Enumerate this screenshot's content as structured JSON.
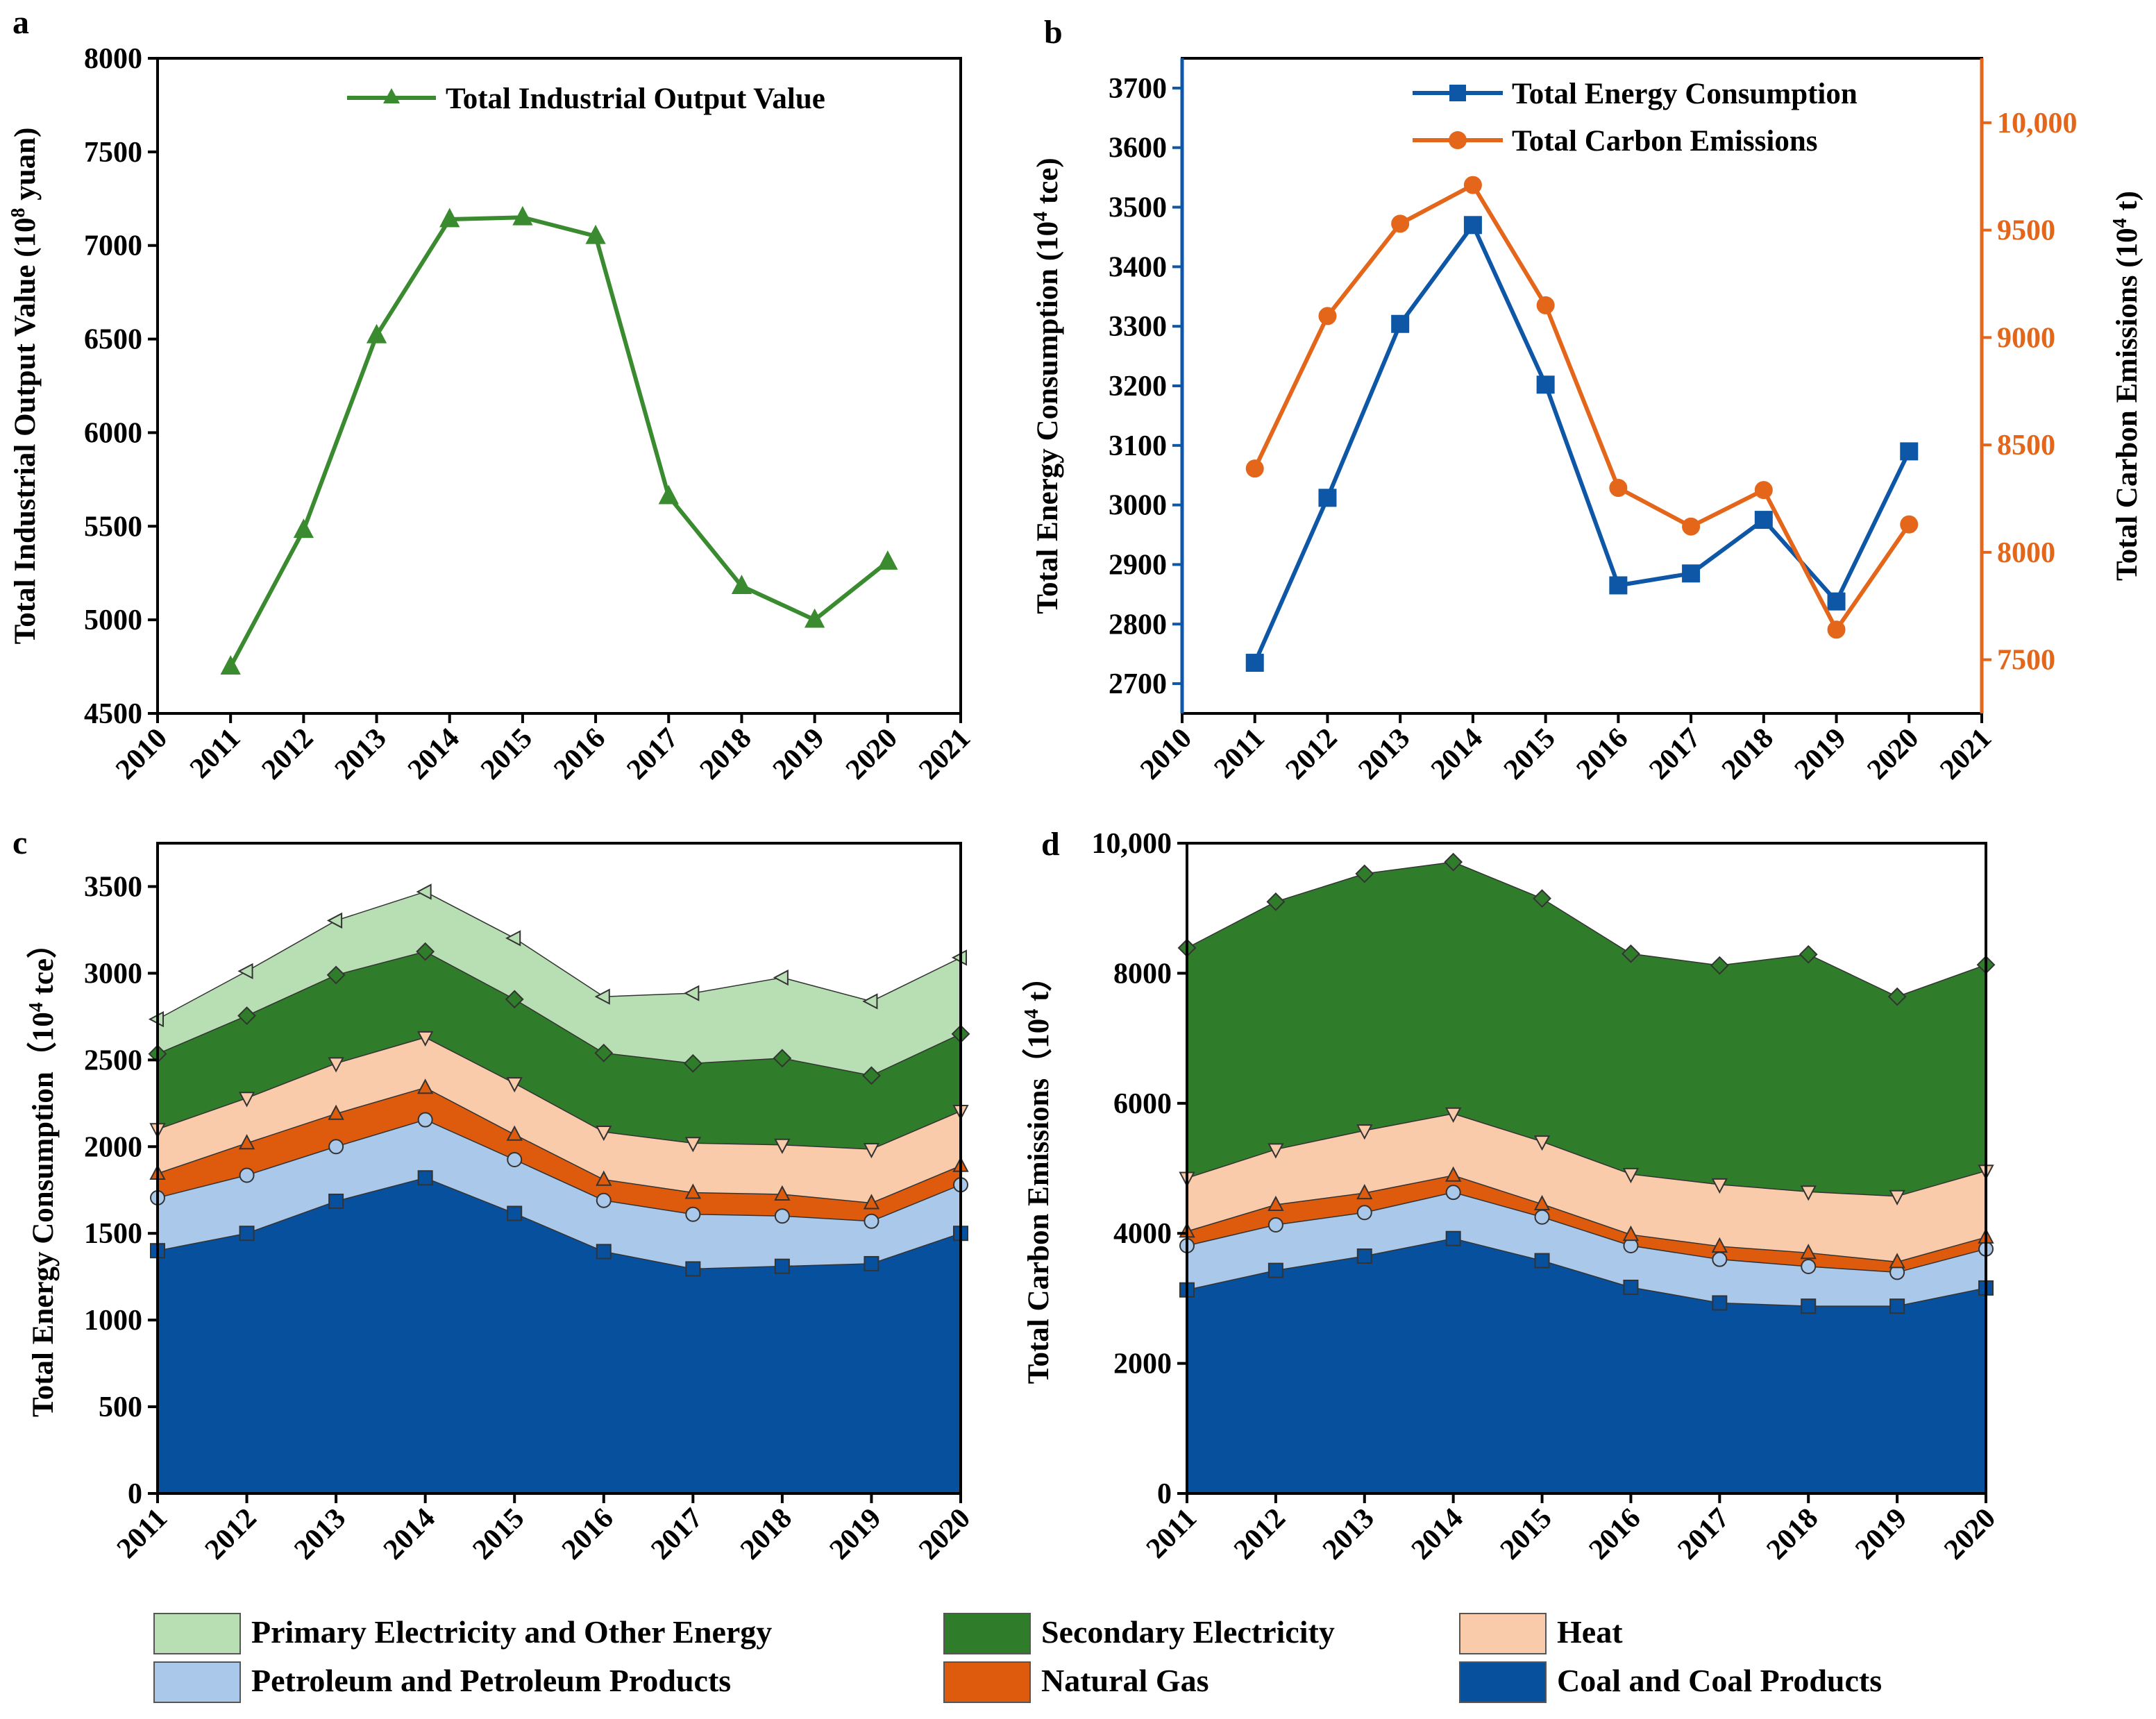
{
  "colors": {
    "green_line": "#3a8a2f",
    "blue_line": "#0d57a6",
    "orange_line": "#e3661b",
    "primary": "#b8dfb3",
    "secondary": "#2f7d2a",
    "heat": "#f9cbaa",
    "petroleum": "#aac8ea",
    "gas": "#de5a0c",
    "coal": "#06509e"
  },
  "legend": {
    "items": [
      {
        "label": "Primary Electricity and Other Energy",
        "color": "#b8dfb3"
      },
      {
        "label": "Secondary Electricity",
        "color": "#2f7d2a"
      },
      {
        "label": "Heat",
        "color": "#f9cbaa"
      },
      {
        "label": "Petroleum and Petroleum Products",
        "color": "#aac8ea"
      },
      {
        "label": "Natural Gas",
        "color": "#de5a0c"
      },
      {
        "label": "Coal and Coal Products",
        "color": "#06509e"
      }
    ]
  },
  "chart_data": [
    {
      "panel": "a",
      "type": "line",
      "title": "",
      "xlabel": "",
      "ylabel_main": "Total Industrial Output Value (10",
      "ylabel_sup": "8",
      "ylabel_end": " yuan)",
      "x": [
        2011,
        2012,
        2013,
        2014,
        2015,
        2016,
        2017,
        2018,
        2019,
        2020
      ],
      "xticks": [
        "2010",
        "2011",
        "2012",
        "2013",
        "2014",
        "2015",
        "2016",
        "2017",
        "2018",
        "2019",
        "2020",
        "2021"
      ],
      "xlim": [
        2010,
        2021
      ],
      "ylim": [
        4500,
        8000
      ],
      "yticks": [
        "4500",
        "5000",
        "5500",
        "6000",
        "6500",
        "7000",
        "7500",
        "8000"
      ],
      "series": [
        {
          "name": "Total Industrial Output Value",
          "color": "#3a8a2f",
          "marker": "triangle",
          "values": [
            4750,
            5480,
            6520,
            7140,
            7150,
            7050,
            5660,
            5180,
            5000,
            5310
          ]
        }
      ],
      "legend_position": "top-right"
    },
    {
      "panel": "b",
      "type": "line",
      "xlim": [
        2010,
        2021
      ],
      "x": [
        2011,
        2012,
        2013,
        2014,
        2015,
        2016,
        2017,
        2018,
        2019,
        2020
      ],
      "xticks": [
        "2010",
        "2011",
        "2012",
        "2013",
        "2014",
        "2015",
        "2016",
        "2017",
        "2018",
        "2019",
        "2020",
        "2021"
      ],
      "ylabel_left_main": "Total Energy Consumption (10",
      "ylabel_left_sup": "4",
      "ylabel_left_end": " tce)",
      "ylim_left": [
        2650,
        3750
      ],
      "yticks_left": [
        "2700",
        "2800",
        "2900",
        "3000",
        "3100",
        "3200",
        "3300",
        "3400",
        "3500",
        "3600",
        "3700"
      ],
      "ylabel_right_main": "Total Carbon Emissions (10",
      "ylabel_right_sup": "4",
      "ylabel_right_end": " t)",
      "ylim_right": [
        7250,
        10300
      ],
      "yticks_right": [
        "7500",
        "8000",
        "8500",
        "9000",
        "9500",
        "10,000"
      ],
      "series": [
        {
          "name": "Total Energy Consumption",
          "axis": "left",
          "color": "#0d57a6",
          "marker": "square",
          "values": [
            2735,
            3012,
            3304,
            3470,
            3202,
            2865,
            2885,
            2975,
            2838,
            3090
          ]
        },
        {
          "name": "Total Carbon Emissions",
          "axis": "right",
          "color": "#e3661b",
          "marker": "circle",
          "values": [
            8390,
            9100,
            9530,
            9710,
            9150,
            8300,
            8120,
            8290,
            7640,
            8130
          ]
        }
      ],
      "legend_position": "top-right"
    },
    {
      "panel": "c",
      "type": "area",
      "stacked": true,
      "ylabel_main": "Total Energy Consumption（10",
      "ylabel_sup": "4",
      "ylabel_end": " tce）",
      "x": [
        2011,
        2012,
        2013,
        2014,
        2015,
        2016,
        2017,
        2018,
        2019,
        2020
      ],
      "xticks": [
        "2011",
        "2012",
        "2013",
        "2014",
        "2015",
        "2016",
        "2017",
        "2018",
        "2019",
        "2020"
      ],
      "ylim": [
        0,
        3750
      ],
      "yticks": [
        "0",
        "500",
        "1000",
        "1500",
        "2000",
        "2500",
        "3000",
        "3500"
      ],
      "cumulative_series": [
        {
          "name": "Coal and Coal Products",
          "marker": "square",
          "values": [
            1400,
            1500,
            1685,
            1820,
            1615,
            1395,
            1295,
            1310,
            1325,
            1500
          ]
        },
        {
          "name": "Petroleum and Petroleum Products",
          "marker": "circle",
          "values": [
            1705,
            1835,
            2000,
            2155,
            1925,
            1690,
            1610,
            1600,
            1570,
            1780
          ]
        },
        {
          "name": "Natural Gas",
          "marker": "triangle",
          "values": [
            1845,
            2020,
            2190,
            2340,
            2070,
            1810,
            1735,
            1725,
            1675,
            1890
          ]
        },
        {
          "name": "Heat",
          "marker": "triangle-down",
          "values": [
            2100,
            2280,
            2480,
            2630,
            2365,
            2085,
            2020,
            2010,
            1985,
            2205
          ]
        },
        {
          "name": "Secondary Electricity",
          "marker": "diamond",
          "values": [
            2535,
            2755,
            2990,
            3125,
            2850,
            2540,
            2480,
            2510,
            2410,
            2650
          ]
        },
        {
          "name": "Primary Electricity and Other Energy",
          "marker": "triangle-left",
          "values": [
            2735,
            3012,
            3304,
            3470,
            3202,
            2865,
            2885,
            2975,
            2838,
            3090
          ]
        }
      ]
    },
    {
      "panel": "d",
      "type": "area",
      "stacked": true,
      "ylabel_main": "Total Carbon Emissions（10",
      "ylabel_sup": "4",
      "ylabel_end": " t）",
      "x": [
        2011,
        2012,
        2013,
        2014,
        2015,
        2016,
        2017,
        2018,
        2019,
        2020
      ],
      "xticks": [
        "2011",
        "2012",
        "2013",
        "2014",
        "2015",
        "2016",
        "2017",
        "2018",
        "2019",
        "2020"
      ],
      "ylim": [
        0,
        10000
      ],
      "yticks": [
        "0",
        "2000",
        "4000",
        "6000",
        "8000",
        "10,000"
      ],
      "cumulative_series": [
        {
          "name": "Coal and Coal Products",
          "marker": "square",
          "values": [
            3130,
            3430,
            3650,
            3920,
            3580,
            3170,
            2930,
            2880,
            2880,
            3160
          ]
        },
        {
          "name": "Petroleum and Petroleum Products",
          "marker": "circle",
          "values": [
            3810,
            4130,
            4320,
            4630,
            4250,
            3810,
            3600,
            3490,
            3400,
            3760
          ]
        },
        {
          "name": "Natural Gas",
          "marker": "triangle",
          "values": [
            4030,
            4440,
            4620,
            4890,
            4450,
            3980,
            3800,
            3700,
            3560,
            3940
          ]
        },
        {
          "name": "Heat",
          "marker": "triangle-down",
          "values": [
            4850,
            5290,
            5580,
            5840,
            5410,
            4910,
            4750,
            4640,
            4570,
            4960
          ]
        },
        {
          "name": "Secondary Electricity",
          "marker": "diamond",
          "values": [
            8390,
            9100,
            9530,
            9710,
            9150,
            8300,
            8120,
            8290,
            7640,
            8130
          ]
        }
      ]
    }
  ],
  "panels": {
    "a": "a",
    "b": "b",
    "c": "c",
    "d": "d"
  }
}
